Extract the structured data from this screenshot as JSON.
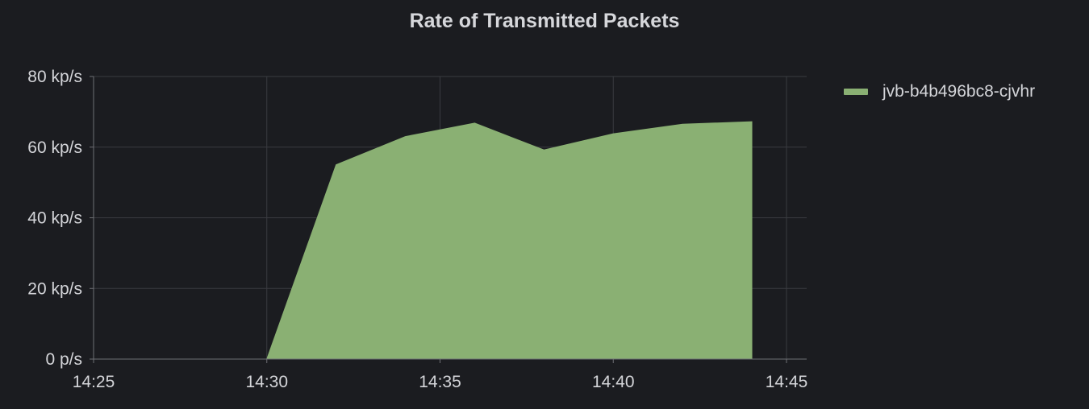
{
  "panel": {
    "title": "Rate of Transmitted Packets"
  },
  "chart_data": {
    "type": "area",
    "title": "Rate of Transmitted Packets",
    "xlabel": "",
    "ylabel": "",
    "x_ticks": [
      "14:25",
      "14:30",
      "14:35",
      "14:40",
      "14:45"
    ],
    "y_ticks": [
      "0 p/s",
      "20 kp/s",
      "40 kp/s",
      "60 kp/s",
      "80 kp/s"
    ],
    "xlim": [
      "14:25",
      "14:45"
    ],
    "ylim": [
      0,
      80
    ],
    "y_unit": "kp/s",
    "grid": true,
    "legend_position": "right",
    "x": [
      "14:30",
      "14:32",
      "14:34",
      "14:36",
      "14:38",
      "14:40",
      "14:42",
      "14:44"
    ],
    "series": [
      {
        "name": "jvb-b4b496bc8-cjvhr",
        "color": "#8ab073",
        "values": [
          0,
          55,
          63,
          66.8,
          59.2,
          63.8,
          66.5,
          67.2
        ]
      }
    ]
  }
}
